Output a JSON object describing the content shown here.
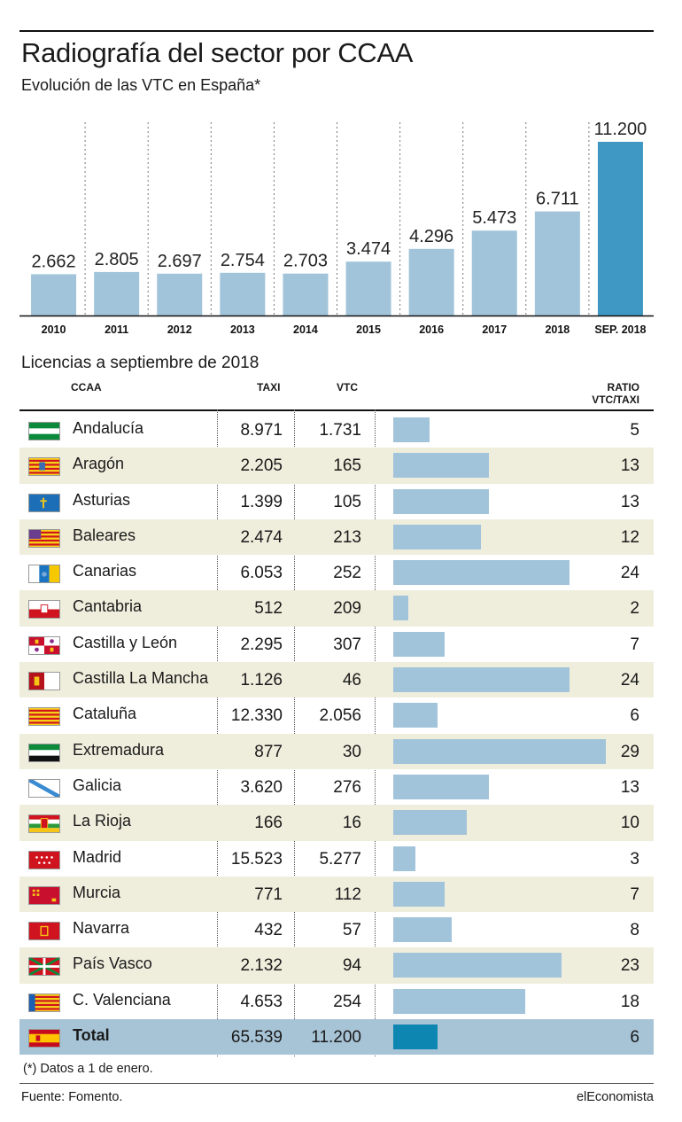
{
  "header": {
    "title": "Radiografía del sector por CCAA",
    "subtitle": "Evolución de las VTC en España*"
  },
  "chart_data": [
    {
      "type": "bar",
      "title": "Evolución de las VTC en España*",
      "categories": [
        "2010",
        "2011",
        "2012",
        "2013",
        "2014",
        "2015",
        "2016",
        "2017",
        "2018",
        "SEP. 2018"
      ],
      "values": [
        2662,
        2805,
        2697,
        2754,
        2703,
        3474,
        4296,
        5473,
        6711,
        11200
      ],
      "value_labels": [
        "2.662",
        "2.805",
        "2.697",
        "2.754",
        "2.703",
        "3.474",
        "4.296",
        "5.473",
        "6.711",
        "11.200"
      ],
      "highlight_index": 9,
      "colors": {
        "bar": "#a2c4da",
        "highlight": "#3f97c4"
      },
      "grid": "vertical dotted separators"
    },
    {
      "type": "table",
      "title": "Licencias a septiembre de 2018",
      "columns": [
        "CCAA",
        "TAXI",
        "VTC",
        "RATIO VTC/TAXI"
      ],
      "rows": [
        {
          "region": "Andalucía",
          "flag": "andalucia-flag",
          "taxi": "8.971",
          "vtc": "1.731",
          "ratio": 5
        },
        {
          "region": "Aragón",
          "flag": "aragon-flag",
          "taxi": "2.205",
          "vtc": "165",
          "ratio": 13
        },
        {
          "region": "Asturias",
          "flag": "asturias-flag",
          "taxi": "1.399",
          "vtc": "105",
          "ratio": 13
        },
        {
          "region": "Baleares",
          "flag": "baleares-flag",
          "taxi": "2.474",
          "vtc": "213",
          "ratio": 12
        },
        {
          "region": "Canarias",
          "flag": "canarias-flag",
          "taxi": "6.053",
          "vtc": "252",
          "ratio": 24
        },
        {
          "region": "Cantabria",
          "flag": "cantabria-flag",
          "taxi": "512",
          "vtc": "209",
          "ratio": 2
        },
        {
          "region": "Castilla y León",
          "flag": "castilla-y-leon-flag",
          "taxi": "2.295",
          "vtc": "307",
          "ratio": 7
        },
        {
          "region": "Castilla La Mancha",
          "flag": "castilla-la-mancha-flag",
          "taxi": "1.126",
          "vtc": "46",
          "ratio": 24
        },
        {
          "region": "Cataluña",
          "flag": "cataluna-flag",
          "taxi": "12.330",
          "vtc": "2.056",
          "ratio": 6
        },
        {
          "region": "Extremadura",
          "flag": "extremadura-flag",
          "taxi": "877",
          "vtc": "30",
          "ratio": 29
        },
        {
          "region": "Galicia",
          "flag": "galicia-flag",
          "taxi": "3.620",
          "vtc": "276",
          "ratio": 13
        },
        {
          "region": "La Rioja",
          "flag": "la-rioja-flag",
          "taxi": "166",
          "vtc": "16",
          "ratio": 10
        },
        {
          "region": "Madrid",
          "flag": "madrid-flag",
          "taxi": "15.523",
          "vtc": "5.277",
          "ratio": 3
        },
        {
          "region": "Murcia",
          "flag": "murcia-flag",
          "taxi": "771",
          "vtc": "112",
          "ratio": 7
        },
        {
          "region": "Navarra",
          "flag": "navarra-flag",
          "taxi": "432",
          "vtc": "57",
          "ratio": 8
        },
        {
          "region": "País Vasco",
          "flag": "pais-vasco-flag",
          "taxi": "2.132",
          "vtc": "94",
          "ratio": 23
        },
        {
          "region": "C. Valenciana",
          "flag": "valenciana-flag",
          "taxi": "4.653",
          "vtc": "254",
          "ratio": 18
        }
      ],
      "total": {
        "region": "Total",
        "flag": "espana-flag",
        "taxi": "65.539",
        "vtc": "11.200",
        "ratio": 6
      },
      "ratio_max": 29,
      "colors": {
        "bar": "#a2c4da",
        "total_bar": "#0d86b2",
        "shade": "#efeedd",
        "total_row": "#a7c3d6"
      }
    }
  ],
  "table_header": {
    "ccaa": "CCAA",
    "taxi": "TAXI",
    "vtc": "VTC",
    "ratio_line1": "RATIO",
    "ratio_line2": "VTC/TAXI"
  },
  "section_title": "Licencias a septiembre de 2018",
  "footer": {
    "note": "(*) Datos a 1 de enero.",
    "source": "Fuente: Fomento.",
    "brand": "elEconomista"
  }
}
